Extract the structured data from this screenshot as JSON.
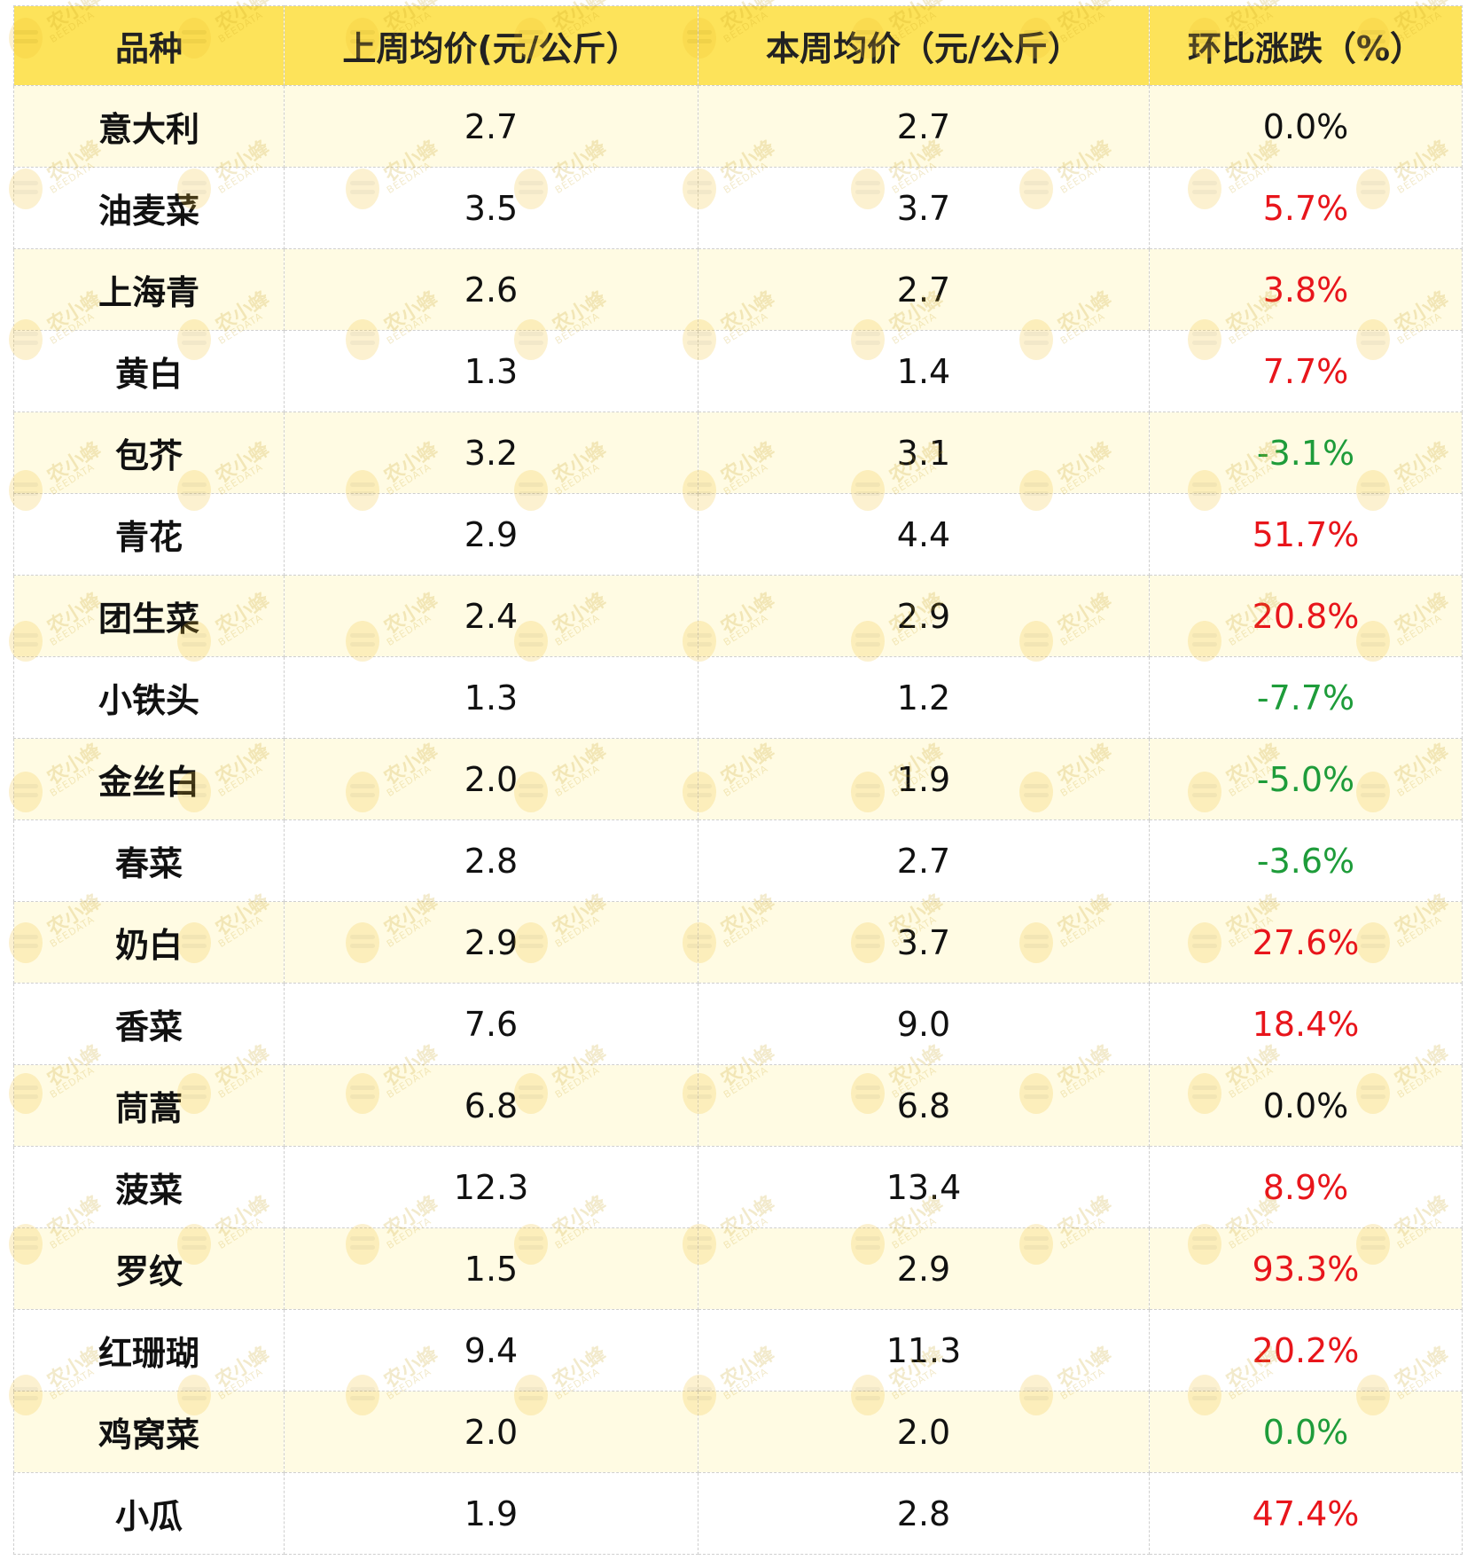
{
  "table": {
    "headers": [
      "品种",
      "上周均价(元/公斤）",
      "本周均价（元/公斤）",
      "环比涨跌（%）"
    ],
    "rows": [
      {
        "name": "意大利",
        "last_week": "2.7",
        "this_week": "2.7",
        "change": "0.0%",
        "trend": "flat"
      },
      {
        "name": "油麦菜",
        "last_week": "3.5",
        "this_week": "3.7",
        "change": "5.7%",
        "trend": "up"
      },
      {
        "name": "上海青",
        "last_week": "2.6",
        "this_week": "2.7",
        "change": "3.8%",
        "trend": "up"
      },
      {
        "name": "黄白",
        "last_week": "1.3",
        "this_week": "1.4",
        "change": "7.7%",
        "trend": "up"
      },
      {
        "name": "包芥",
        "last_week": "3.2",
        "this_week": "3.1",
        "change": "-3.1%",
        "trend": "down"
      },
      {
        "name": "青花",
        "last_week": "2.9",
        "this_week": "4.4",
        "change": "51.7%",
        "trend": "up"
      },
      {
        "name": "团生菜",
        "last_week": "2.4",
        "this_week": "2.9",
        "change": "20.8%",
        "trend": "up"
      },
      {
        "name": "小铁头",
        "last_week": "1.3",
        "this_week": "1.2",
        "change": "-7.7%",
        "trend": "down"
      },
      {
        "name": "金丝白",
        "last_week": "2.0",
        "this_week": "1.9",
        "change": "-5.0%",
        "trend": "down"
      },
      {
        "name": "春菜",
        "last_week": "2.8",
        "this_week": "2.7",
        "change": "-3.6%",
        "trend": "down"
      },
      {
        "name": "奶白",
        "last_week": "2.9",
        "this_week": "3.7",
        "change": "27.6%",
        "trend": "up"
      },
      {
        "name": "香菜",
        "last_week": "7.6",
        "this_week": "9.0",
        "change": "18.4%",
        "trend": "up"
      },
      {
        "name": "茼蒿",
        "last_week": "6.8",
        "this_week": "6.8",
        "change": "0.0%",
        "trend": "flat"
      },
      {
        "name": "菠菜",
        "last_week": "12.3",
        "this_week": "13.4",
        "change": "8.9%",
        "trend": "up"
      },
      {
        "name": "罗纹",
        "last_week": "1.5",
        "this_week": "2.9",
        "change": "93.3%",
        "trend": "up"
      },
      {
        "name": "红珊瑚",
        "last_week": "9.4",
        "this_week": "11.3",
        "change": "20.2%",
        "trend": "up"
      },
      {
        "name": "鸡窝菜",
        "last_week": "2.0",
        "this_week": "2.0",
        "change": "0.0%",
        "trend": "flatgreen"
      },
      {
        "name": "小瓜",
        "last_week": "1.9",
        "this_week": "2.8",
        "change": "47.4%",
        "trend": "up"
      }
    ]
  },
  "watermark": {
    "text": "农小蜂",
    "subtext": "BEEDATA"
  },
  "colors": {
    "header_bg": "#fde35a",
    "odd_row_bg": "#fffbe3",
    "up": "#e8151b",
    "down": "#1e9c3a"
  }
}
